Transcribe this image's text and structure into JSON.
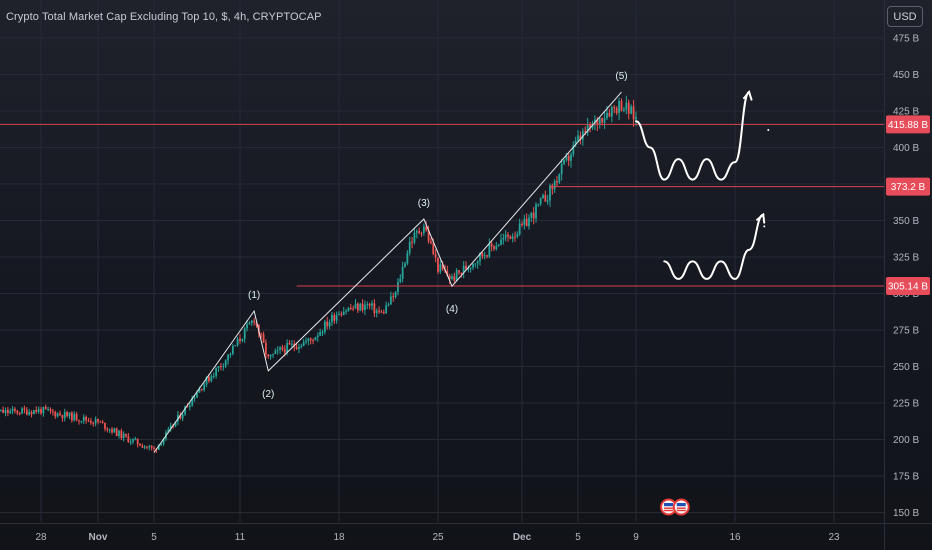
{
  "header": {
    "title": "Crypto Total Market Cap Excluding Top 10, $, 4h, CRYPTOCAP",
    "currency_button": "USD"
  },
  "colors": {
    "bull": "#26a69a",
    "bear": "#ef5350",
    "level_line": "#d9424f",
    "label_bg": "#e74c5a",
    "annotation": "#ffffff",
    "wave_label": "#e0f2f1",
    "axis_text": "#b2b5be",
    "grid": "#262a35"
  },
  "chart_data": {
    "type": "candlestick",
    "title": "Crypto Total Market Cap Excluding Top 10, $, 4h, CRYPTOCAP",
    "timeframe": "4h",
    "x_ticks": [
      "28",
      "Nov",
      "5",
      "11",
      "18",
      "25",
      "Dec",
      "5",
      "9",
      "16",
      "23"
    ],
    "y_ticks": [
      "475 B",
      "450 B",
      "425 B",
      "400 B",
      "375 B",
      "350 B",
      "325 B",
      "300 B",
      "275 B",
      "250 B",
      "225 B",
      "200 B",
      "175 B",
      "150 B"
    ],
    "ylim": [
      150,
      480
    ],
    "anchors": [
      {
        "x": "Oct 24",
        "price": 218
      },
      {
        "x": "Oct 28",
        "price": 220
      },
      {
        "x": "Nov 1",
        "price": 212
      },
      {
        "x": "Nov 3",
        "price": 201
      },
      {
        "x": "Nov 5",
        "price": 193
      },
      {
        "x": "Nov 6",
        "price": 205
      },
      {
        "x": "Nov 8",
        "price": 233
      },
      {
        "x": "Nov 10",
        "price": 255
      },
      {
        "x": "Nov 12",
        "price": 283
      },
      {
        "x": "Nov 13",
        "price": 255
      },
      {
        "x": "Nov 14",
        "price": 262
      },
      {
        "x": "Nov 16",
        "price": 268
      },
      {
        "x": "Nov 18",
        "price": 288
      },
      {
        "x": "Nov 20",
        "price": 292
      },
      {
        "x": "Nov 21",
        "price": 286
      },
      {
        "x": "Nov 22",
        "price": 300
      },
      {
        "x": "Nov 23",
        "price": 335
      },
      {
        "x": "Nov 24",
        "price": 347
      },
      {
        "x": "Nov 25",
        "price": 318
      },
      {
        "x": "Nov 26",
        "price": 310
      },
      {
        "x": "Nov 27",
        "price": 318
      },
      {
        "x": "Nov 29",
        "price": 333
      },
      {
        "x": "Dec 1",
        "price": 345
      },
      {
        "x": "Dec 3",
        "price": 370
      },
      {
        "x": "Dec 5",
        "price": 405
      },
      {
        "x": "Dec 7",
        "price": 425
      },
      {
        "x": "Dec 8",
        "price": 430
      },
      {
        "x": "Dec 9",
        "price": 420
      }
    ],
    "last_price": 415.88,
    "price_labels": [
      "415.88 B",
      "373.2 B",
      "305.14 B"
    ],
    "levels": [
      {
        "price": 415.88,
        "label": "415.88 B",
        "from": "Oct 24"
      },
      {
        "price": 373.2,
        "label": "373.2 B",
        "from": "Dec 3"
      },
      {
        "price": 305.14,
        "label": "305.14 B",
        "from": "Nov 15"
      }
    ],
    "elliott_waves": [
      {
        "label": "(1)",
        "x": "Nov 12",
        "price": 288
      },
      {
        "label": "(2)",
        "x": "Nov 13",
        "price": 247
      },
      {
        "label": "(3)",
        "x": "Nov 24",
        "price": 351
      },
      {
        "label": "(4)",
        "x": "Nov 26",
        "price": 305
      },
      {
        "label": "(5)",
        "x": "Dec 8",
        "price": 438
      }
    ],
    "wave_line_start": {
      "x": "Nov 5",
      "price": 191
    },
    "projections": [
      {
        "name": "upper-w-projection",
        "points": [
          [
            "Dec 9",
            418
          ],
          [
            "Dec 10",
            400
          ],
          [
            "Dec 11",
            378
          ],
          [
            "Dec 12",
            392
          ],
          [
            "Dec 13",
            378
          ],
          [
            "Dec 14",
            392
          ],
          [
            "Dec 15",
            378
          ],
          [
            "Dec 16",
            390
          ],
          [
            "Dec 17",
            438
          ]
        ]
      },
      {
        "name": "lower-w-projection",
        "points": [
          [
            "Dec 11",
            322
          ],
          [
            "Dec 12",
            310
          ],
          [
            "Dec 13",
            322
          ],
          [
            "Dec 14",
            310
          ],
          [
            "Dec 15",
            322
          ],
          [
            "Dec 16",
            310
          ],
          [
            "Dec 17",
            330
          ],
          [
            "Dec 18",
            354
          ]
        ]
      }
    ],
    "grid": true,
    "legend": "none"
  }
}
